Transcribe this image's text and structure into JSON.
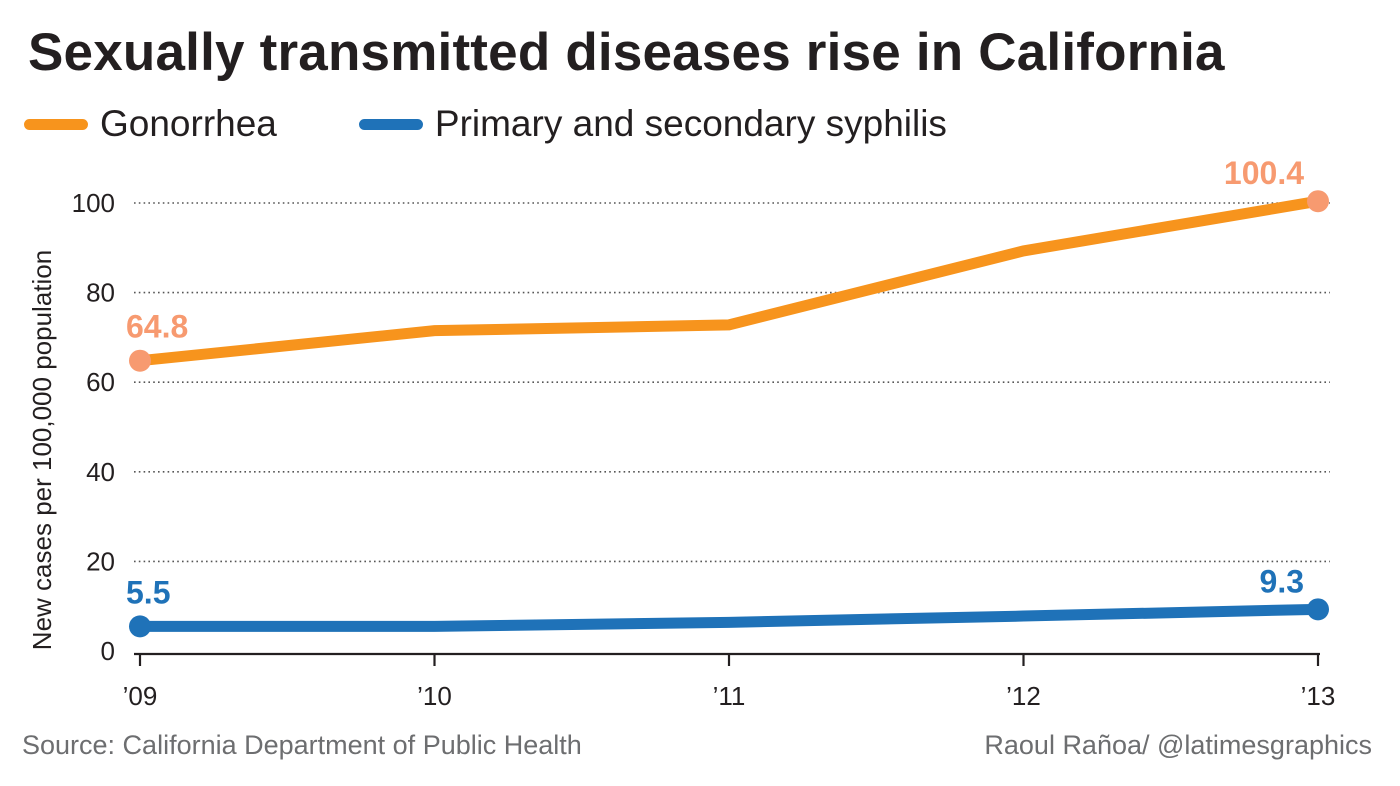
{
  "chart_data": {
    "type": "line",
    "title": "Sexually transmitted diseases rise in California",
    "ylabel": "New cases per 100,000 population",
    "xlabel": "",
    "categories": [
      "’09",
      "’10",
      "’11",
      "’12",
      "’13"
    ],
    "ylim": [
      0,
      100
    ],
    "yticks": [
      0,
      20,
      40,
      60,
      80,
      100
    ],
    "grid": "horizontal dotted",
    "legend_position": "top-left",
    "series": [
      {
        "name": "Gonorrhea",
        "color": "#f7941d",
        "end_color": "#f79a70",
        "values": [
          64.8,
          71.5,
          72.8,
          89.3,
          100.4
        ],
        "start_label": "64.8",
        "end_label": "100.4"
      },
      {
        "name": "Primary and secondary syphilis",
        "color": "#1f72b8",
        "end_color": "#1f72b8",
        "values": [
          5.5,
          5.5,
          6.4,
          7.8,
          9.3
        ],
        "start_label": "5.5",
        "end_label": "9.3"
      }
    ]
  },
  "footer": {
    "source": "Source: California Department of Public Health",
    "credit": "Raoul Rañoa/ @latimesgraphics"
  }
}
